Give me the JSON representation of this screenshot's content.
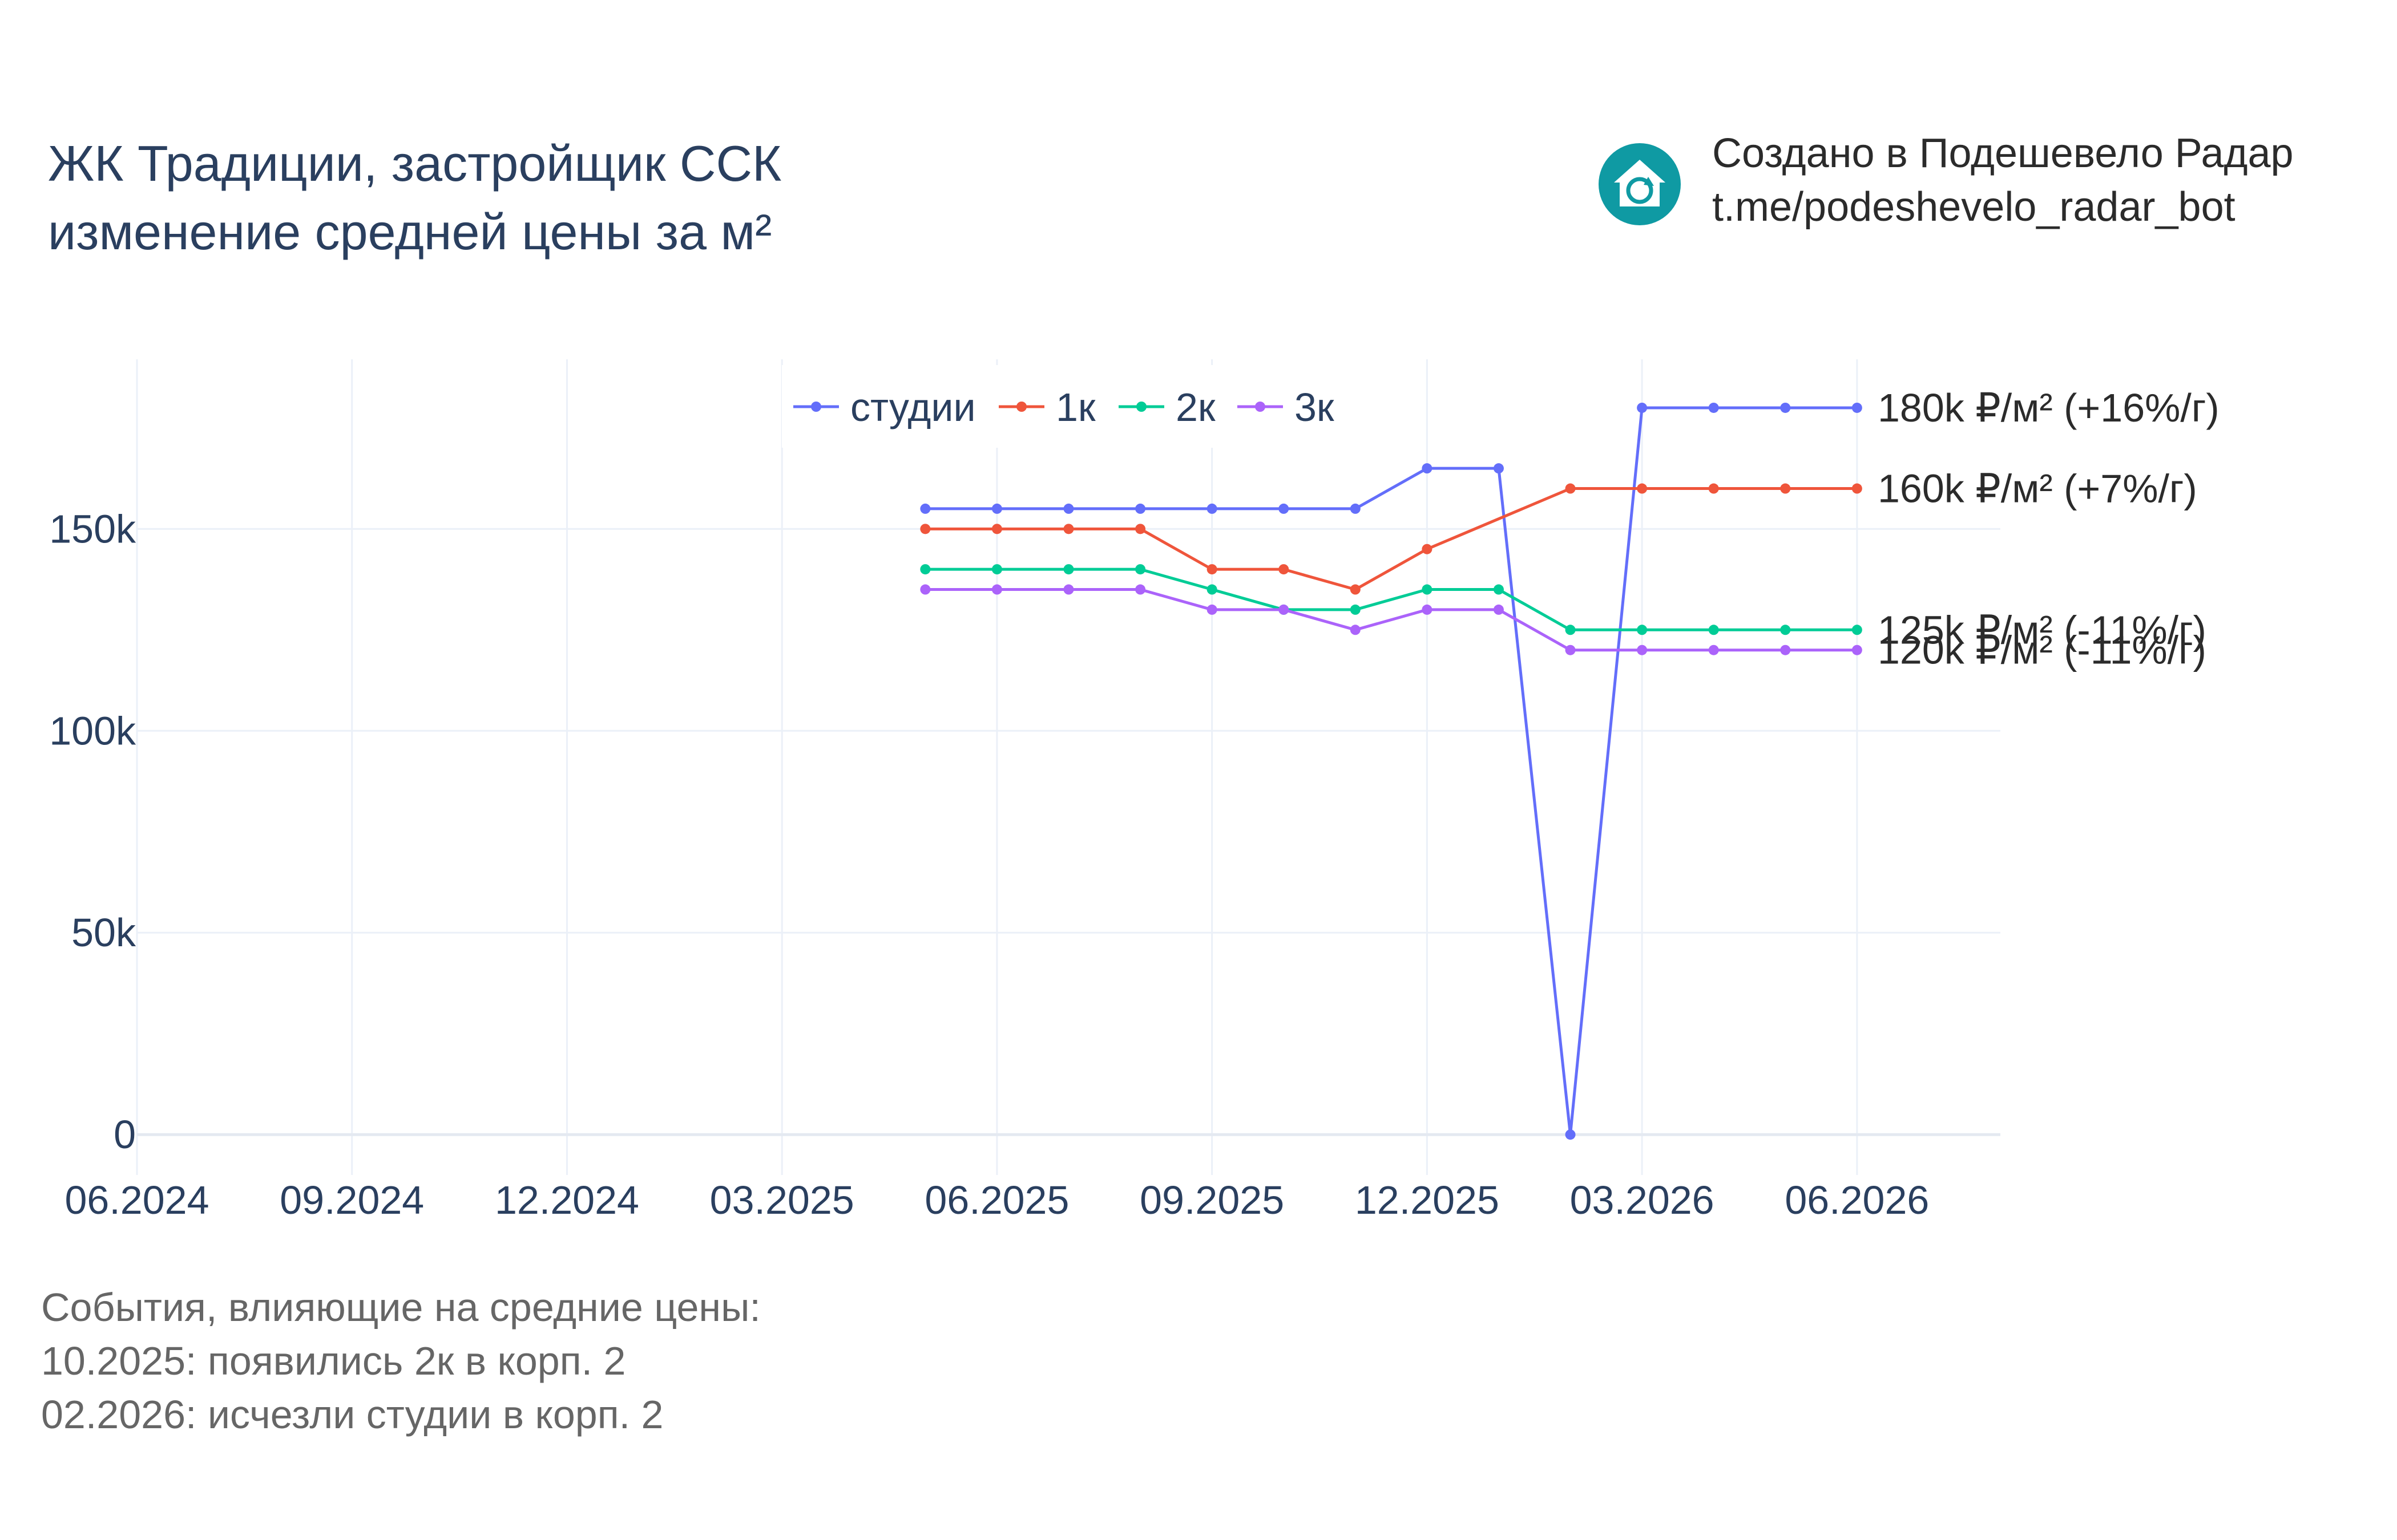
{
  "header": {
    "title_line1": "ЖК Традиции, застройщик ССК",
    "title_line2": "изменение средней цены за м²"
  },
  "brand": {
    "line1": "Создано в Подешевело Радар",
    "line2": "t.me/podeshevelo_radar_bot",
    "icon": "house-refresh-icon",
    "icon_color": "#0f9aa3"
  },
  "notes": {
    "heading": "События, влияющие на средние цены:",
    "items": [
      "10.2025: появились 2к в корп. 2",
      "02.2026: исчезли студии в корп. 2"
    ]
  },
  "chart_data": {
    "type": "line",
    "title": "",
    "xlabel": "",
    "ylabel": "",
    "x_ticks": [
      "06.2024",
      "09.2024",
      "12.2024",
      "03.2025",
      "06.2025",
      "09.2025",
      "12.2025",
      "03.2026",
      "06.2026"
    ],
    "y_ticks": [
      {
        "value": 0,
        "label": "0"
      },
      {
        "value": 50000,
        "label": "50k"
      },
      {
        "value": 100000,
        "label": "100k"
      },
      {
        "value": 150000,
        "label": "150k"
      }
    ],
    "xlim": [
      "2024-06",
      "2026-08"
    ],
    "ylim": [
      -10000,
      192000
    ],
    "grid": true,
    "legend_position": "top-center",
    "series": [
      {
        "name": "студии",
        "color": "#636efa",
        "end_label": "180k ₽/м² (+16%/г)",
        "points": [
          [
            "2025-05",
            155000
          ],
          [
            "2025-06",
            155000
          ],
          [
            "2025-07",
            155000
          ],
          [
            "2025-08",
            155000
          ],
          [
            "2025-09",
            155000
          ],
          [
            "2025-10",
            155000
          ],
          [
            "2025-11",
            155000
          ],
          [
            "2025-12",
            165000
          ],
          [
            "2026-01",
            165000
          ],
          [
            "2026-02",
            0
          ],
          [
            "2026-03",
            180000
          ],
          [
            "2026-04",
            180000
          ],
          [
            "2026-05",
            180000
          ],
          [
            "2026-06",
            180000
          ]
        ]
      },
      {
        "name": "1к",
        "color": "#ef553b",
        "end_label": "160k ₽/м² (+7%/г)",
        "points": [
          [
            "2025-05",
            150000
          ],
          [
            "2025-06",
            150000
          ],
          [
            "2025-07",
            150000
          ],
          [
            "2025-08",
            150000
          ],
          [
            "2025-09",
            140000
          ],
          [
            "2025-10",
            140000
          ],
          [
            "2025-11",
            135000
          ],
          [
            "2025-12",
            145000
          ],
          [
            "2026-02",
            160000
          ],
          [
            "2026-03",
            160000
          ],
          [
            "2026-04",
            160000
          ],
          [
            "2026-05",
            160000
          ],
          [
            "2026-06",
            160000
          ]
        ]
      },
      {
        "name": "2к",
        "color": "#00cc96",
        "end_label": "125k ₽/м² (-11%/г)",
        "points": [
          [
            "2025-05",
            140000
          ],
          [
            "2025-06",
            140000
          ],
          [
            "2025-07",
            140000
          ],
          [
            "2025-08",
            140000
          ],
          [
            "2025-09",
            135000
          ],
          [
            "2025-10",
            130000
          ],
          [
            "2025-11",
            130000
          ],
          [
            "2025-12",
            135000
          ],
          [
            "2026-01",
            135000
          ],
          [
            "2026-02",
            125000
          ],
          [
            "2026-03",
            125000
          ],
          [
            "2026-04",
            125000
          ],
          [
            "2026-05",
            125000
          ],
          [
            "2026-06",
            125000
          ]
        ]
      },
      {
        "name": "3к",
        "color": "#ab63fa",
        "end_label": "120k ₽/м² (-11%/г)",
        "points": [
          [
            "2025-05",
            135000
          ],
          [
            "2025-06",
            135000
          ],
          [
            "2025-07",
            135000
          ],
          [
            "2025-08",
            135000
          ],
          [
            "2025-09",
            130000
          ],
          [
            "2025-10",
            130000
          ],
          [
            "2025-11",
            125000
          ],
          [
            "2025-12",
            130000
          ],
          [
            "2026-01",
            130000
          ],
          [
            "2026-02",
            120000
          ],
          [
            "2026-03",
            120000
          ],
          [
            "2026-04",
            120000
          ],
          [
            "2026-05",
            120000
          ],
          [
            "2026-06",
            120000
          ]
        ]
      }
    ]
  }
}
